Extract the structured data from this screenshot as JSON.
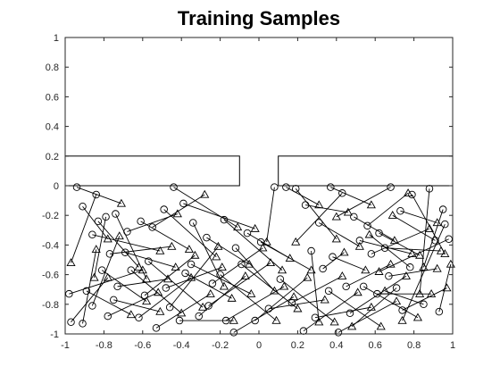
{
  "chart_data": {
    "type": "scatter",
    "title": "Training Samples",
    "xlabel": "",
    "ylabel": "",
    "xlim": [
      -1,
      1
    ],
    "ylim": [
      -1,
      1
    ],
    "xticks": [
      -1,
      -0.8,
      -0.6,
      -0.4,
      -0.2,
      0,
      0.2,
      0.4,
      0.6,
      0.8,
      1
    ],
    "yticks": [
      -1,
      -0.8,
      -0.6,
      -0.4,
      -0.2,
      0,
      0.2,
      0.4,
      0.6,
      0.8,
      1
    ],
    "grid": false,
    "obstacles": [
      {
        "x": [
          -1,
          -0.1
        ],
        "y": [
          0,
          0.2
        ]
      },
      {
        "x": [
          0.1,
          1
        ],
        "y": [
          0,
          0.2
        ]
      }
    ],
    "series": [
      {
        "marker": "circle",
        "start": true
      },
      {
        "marker": "triangle",
        "start": false
      }
    ],
    "segments": [
      [
        [
          -0.94,
          -0.01
        ],
        [
          -0.71,
          -0.12
        ]
      ],
      [
        [
          -0.84,
          -0.06
        ],
        [
          -0.97,
          -0.52
        ]
      ],
      [
        [
          -0.91,
          -0.14
        ],
        [
          -0.78,
          -0.36
        ]
      ],
      [
        [
          -0.79,
          -0.21
        ],
        [
          -0.85,
          -0.62
        ]
      ],
      [
        [
          -0.83,
          -0.24
        ],
        [
          -0.62,
          -0.55
        ]
      ],
      [
        [
          -0.74,
          -0.19
        ],
        [
          -0.58,
          -0.63
        ]
      ],
      [
        [
          -0.86,
          -0.33
        ],
        [
          -0.51,
          -0.44
        ]
      ],
      [
        [
          -0.77,
          -0.46
        ],
        [
          -0.45,
          -0.41
        ]
      ],
      [
        [
          -0.68,
          -0.31
        ],
        [
          -0.42,
          -0.19
        ]
      ],
      [
        [
          -0.61,
          -0.24
        ],
        [
          -0.36,
          -0.43
        ]
      ],
      [
        [
          -0.55,
          -0.28
        ],
        [
          -0.28,
          -0.06
        ]
      ],
      [
        [
          -0.49,
          -0.16
        ],
        [
          -0.22,
          -0.48
        ]
      ],
      [
        [
          -0.44,
          -0.01
        ],
        [
          -0.11,
          -0.28
        ]
      ],
      [
        [
          -0.39,
          -0.12
        ],
        [
          -0.02,
          -0.29
        ]
      ],
      [
        [
          -0.34,
          -0.25
        ],
        [
          -0.18,
          -0.68
        ]
      ],
      [
        [
          -0.27,
          -0.35
        ],
        [
          -0.05,
          -0.53
        ]
      ],
      [
        [
          -0.18,
          -0.23
        ],
        [
          0.12,
          -0.57
        ]
      ],
      [
        [
          -0.12,
          -0.42
        ],
        [
          0.08,
          -0.71
        ]
      ],
      [
        [
          -0.06,
          -0.32
        ],
        [
          0.16,
          -0.49
        ]
      ],
      [
        [
          0.01,
          -0.38
        ],
        [
          0.27,
          -0.57
        ]
      ],
      [
        [
          0.08,
          -0.01
        ],
        [
          0.04,
          -0.38
        ]
      ],
      [
        [
          0.14,
          -0.01
        ],
        [
          0.31,
          -0.13
        ]
      ],
      [
        [
          0.19,
          -0.02
        ],
        [
          0.4,
          -0.36
        ]
      ],
      [
        [
          0.24,
          -0.13
        ],
        [
          0.46,
          -0.18
        ]
      ],
      [
        [
          0.31,
          -0.25
        ],
        [
          0.52,
          -0.41
        ]
      ],
      [
        [
          0.37,
          -0.01
        ],
        [
          0.58,
          -0.13
        ]
      ],
      [
        [
          0.43,
          -0.05
        ],
        [
          0.19,
          -0.38
        ]
      ],
      [
        [
          0.49,
          -0.21
        ],
        [
          0.7,
          -0.37
        ]
      ],
      [
        [
          0.56,
          -0.27
        ],
        [
          0.77,
          -0.05
        ]
      ],
      [
        [
          0.62,
          -0.32
        ],
        [
          0.83,
          -0.47
        ]
      ],
      [
        [
          0.68,
          -0.01
        ],
        [
          0.4,
          -0.21
        ]
      ],
      [
        [
          0.73,
          -0.17
        ],
        [
          0.92,
          -0.25
        ]
      ],
      [
        [
          0.79,
          -0.06
        ],
        [
          0.96,
          -0.46
        ]
      ],
      [
        [
          0.88,
          -0.02
        ],
        [
          0.83,
          -0.73
        ]
      ],
      [
        [
          0.95,
          -0.16
        ],
        [
          0.85,
          -0.55
        ]
      ],
      [
        [
          0.98,
          -0.36
        ],
        [
          0.62,
          -0.58
        ]
      ],
      [
        [
          0.96,
          -0.26
        ],
        [
          0.74,
          -0.91
        ]
      ],
      [
        [
          -0.98,
          -0.73
        ],
        [
          -0.6,
          -0.57
        ]
      ],
      [
        [
          -0.91,
          -0.93
        ],
        [
          -0.84,
          -0.43
        ]
      ],
      [
        [
          -0.86,
          -0.81
        ],
        [
          -0.72,
          -0.34
        ]
      ],
      [
        [
          -0.78,
          -0.88
        ],
        [
          -0.52,
          -0.72
        ]
      ],
      [
        [
          -0.73,
          -0.68
        ],
        [
          -0.47,
          -0.63
        ]
      ],
      [
        [
          -0.66,
          -0.57
        ],
        [
          -0.4,
          -0.86
        ]
      ],
      [
        [
          -0.59,
          -0.74
        ],
        [
          -0.33,
          -0.47
        ]
      ],
      [
        [
          -0.53,
          -0.96
        ],
        [
          -0.25,
          -0.73
        ]
      ],
      [
        [
          -0.46,
          -0.82
        ],
        [
          -0.21,
          -0.41
        ]
      ],
      [
        [
          -0.38,
          -0.59
        ],
        [
          -0.14,
          -0.76
        ]
      ],
      [
        [
          -0.31,
          -0.88
        ],
        [
          -0.07,
          -0.61
        ]
      ],
      [
        [
          -0.24,
          -0.66
        ],
        [
          0.02,
          -0.42
        ]
      ],
      [
        [
          -0.17,
          -0.91
        ],
        [
          0.13,
          -0.68
        ]
      ],
      [
        [
          -0.09,
          -0.53
        ],
        [
          0.2,
          -0.83
        ]
      ],
      [
        [
          -0.02,
          -0.91
        ],
        [
          0.25,
          -0.62
        ]
      ],
      [
        [
          0.05,
          -0.83
        ],
        [
          0.34,
          -0.77
        ]
      ],
      [
        [
          0.11,
          -0.63
        ],
        [
          0.39,
          -0.92
        ]
      ],
      [
        [
          0.17,
          -0.79
        ],
        [
          0.43,
          -0.61
        ]
      ],
      [
        [
          0.23,
          -0.98
        ],
        [
          0.51,
          -0.72
        ]
      ],
      [
        [
          0.29,
          -0.89
        ],
        [
          0.58,
          -0.82
        ]
      ],
      [
        [
          0.36,
          -0.71
        ],
        [
          0.63,
          -0.95
        ]
      ],
      [
        [
          0.41,
          -0.99
        ],
        [
          0.71,
          -0.78
        ]
      ],
      [
        [
          0.47,
          -0.86
        ],
        [
          0.76,
          -0.61
        ]
      ],
      [
        [
          0.54,
          -0.68
        ],
        [
          0.82,
          -0.89
        ]
      ],
      [
        [
          0.61,
          -0.73
        ],
        [
          0.89,
          -0.73
        ]
      ],
      [
        [
          0.67,
          -0.61
        ],
        [
          0.92,
          -0.56
        ]
      ],
      [
        [
          0.74,
          -0.84
        ],
        [
          0.97,
          -0.69
        ]
      ],
      [
        [
          -0.97,
          -0.92
        ],
        [
          -0.78,
          -0.62
        ]
      ],
      [
        [
          -0.89,
          -0.71
        ],
        [
          -0.66,
          -0.87
        ]
      ],
      [
        [
          -0.81,
          -0.57
        ],
        [
          -0.58,
          -0.78
        ]
      ],
      [
        [
          -0.75,
          -0.77
        ],
        [
          -0.51,
          -0.85
        ]
      ],
      [
        [
          -0.69,
          -0.45
        ],
        [
          -0.43,
          -0.55
        ]
      ],
      [
        [
          -0.62,
          -0.89
        ],
        [
          -0.35,
          -0.62
        ]
      ],
      [
        [
          -0.57,
          -0.51
        ],
        [
          -0.29,
          -0.82
        ]
      ],
      [
        [
          -0.48,
          -0.69
        ],
        [
          -0.19,
          -0.55
        ]
      ],
      [
        [
          -0.41,
          -0.91
        ],
        [
          -0.13,
          -0.91
        ]
      ],
      [
        [
          -0.35,
          -0.53
        ],
        [
          -0.04,
          -0.73
        ]
      ],
      [
        [
          -0.26,
          -0.81
        ],
        [
          0.06,
          -0.52
        ]
      ],
      [
        [
          -0.2,
          -0.6
        ],
        [
          0.09,
          -0.91
        ]
      ],
      [
        [
          -0.13,
          -0.99
        ],
        [
          0.18,
          -0.75
        ]
      ],
      [
        [
          0.27,
          -0.44
        ],
        [
          0.31,
          -0.92
        ]
      ],
      [
        [
          0.33,
          -0.56
        ],
        [
          0.44,
          -0.45
        ]
      ],
      [
        [
          0.38,
          -0.48
        ],
        [
          0.55,
          -0.57
        ]
      ],
      [
        [
          0.45,
          -0.68
        ],
        [
          0.68,
          -0.53
        ]
      ],
      [
        [
          0.52,
          -0.37
        ],
        [
          0.79,
          -0.46
        ]
      ],
      [
        [
          0.58,
          -0.46
        ],
        [
          0.88,
          -0.29
        ]
      ],
      [
        [
          0.65,
          -0.42
        ],
        [
          0.94,
          -0.44
        ]
      ],
      [
        [
          0.71,
          -0.69
        ],
        [
          0.48,
          -0.95
        ]
      ],
      [
        [
          0.78,
          -0.55
        ],
        [
          0.57,
          -0.33
        ]
      ],
      [
        [
          0.85,
          -0.8
        ],
        [
          0.65,
          -0.71
        ]
      ],
      [
        [
          0.91,
          -0.37
        ],
        [
          0.69,
          -0.2
        ]
      ],
      [
        [
          0.93,
          -0.85
        ],
        [
          0.99,
          -0.53
        ]
      ]
    ]
  }
}
